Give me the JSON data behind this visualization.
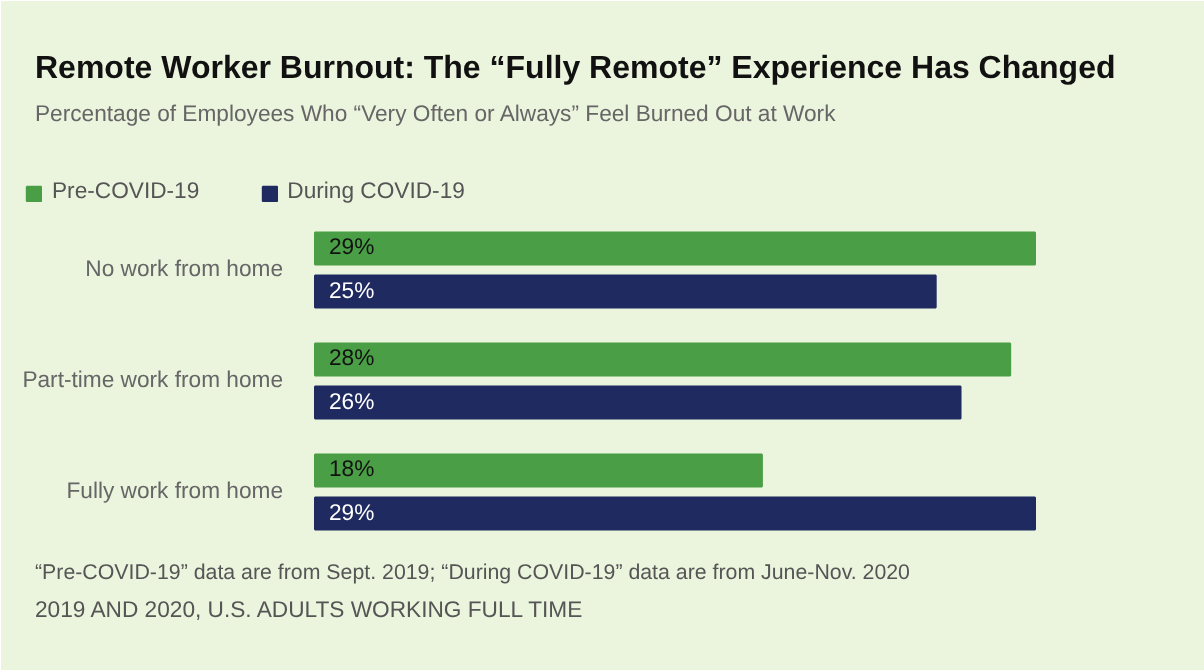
{
  "chart_data": {
    "type": "bar",
    "orientation": "horizontal",
    "title": "Remote Worker Burnout: The “Fully Remote” Experience Has Changed",
    "subtitle": "Percentage of Employees Who “Very Often or Always” Feel Burned Out at Work",
    "categories": [
      "No work from home",
      "Part-time work from home",
      "Fully work from home"
    ],
    "series": [
      {
        "name": "Pre-COVID-19",
        "color": "#4a9e45",
        "values": [
          29,
          28,
          18
        ],
        "value_labels": [
          "29%",
          "28%",
          "18%"
        ]
      },
      {
        "name": "During COVID-19",
        "color": "#1f2a60",
        "values": [
          25,
          26,
          29
        ],
        "value_labels": [
          "25%",
          "26%",
          "29%"
        ]
      }
    ],
    "legend": "top left",
    "annotations": [
      "“Pre-COVID-19” data are from Sept. 2019; “During COVID-19” data are from June-Nov. 2020",
      "2019 AND 2020, U.S. ADULTS WORKING FULL TIME"
    ]
  }
}
